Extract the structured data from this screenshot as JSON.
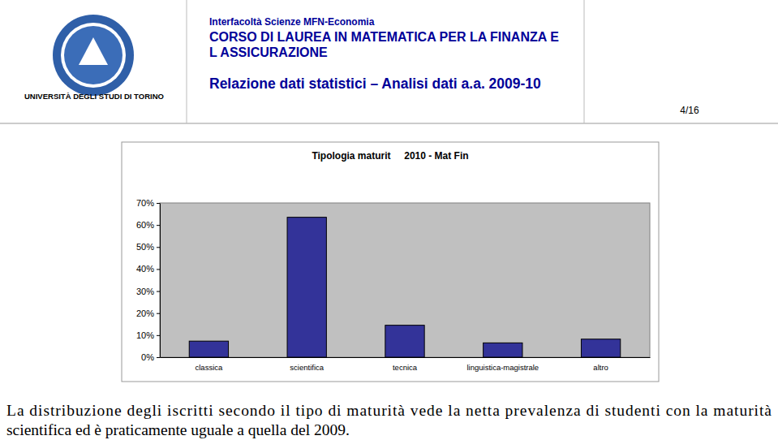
{
  "header": {
    "university": "UNIVERSITÀ DEGLI STUDI DI TORINO",
    "faculty": "Interfacoltà Scienze MFN-Economia",
    "course": [
      "CORSO DI LAUREA IN MATEMATICA PER LA FINANZA E",
      "L ASSICURAZIONE"
    ],
    "report": "Relazione dati statistici – Analisi dati a.a. 2009-10",
    "page": "4/16"
  },
  "chart_data": {
    "type": "bar",
    "title": "Tipologia maturit     2010 - Mat Fin",
    "categories": [
      "classica",
      "scientifica",
      "tecnica",
      "linguistica-magistrale",
      "altro"
    ],
    "values": [
      7.3,
      63.5,
      14.5,
      6.5,
      8.2
    ],
    "color": "#333399",
    "ylim": [
      0,
      70
    ],
    "yticks": [
      {
        "value": 0,
        "label": "0%"
      },
      {
        "value": 10,
        "label": "10%"
      },
      {
        "value": 20,
        "label": "20%"
      },
      {
        "value": 30,
        "label": "30%"
      },
      {
        "value": 40,
        "label": "40%"
      },
      {
        "value": 50,
        "label": "50%"
      },
      {
        "value": 60,
        "label": "60%"
      },
      {
        "value": 70,
        "label": "70%"
      }
    ],
    "grid": false
  },
  "caption": [
    "La distribuzione degli iscritti secondo il tipo di maturità vede la netta prevalenza di studenti con la maturità",
    "scientifica ed è praticamente uguale a quella del 2009."
  ]
}
